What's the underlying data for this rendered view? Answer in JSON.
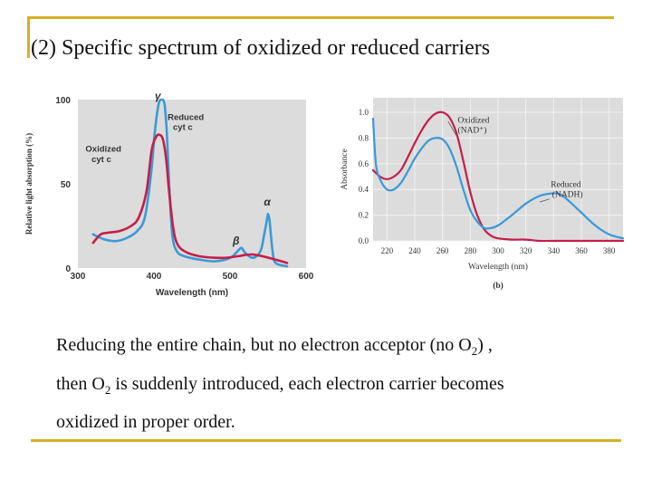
{
  "slide": {
    "title": "(2) Specific spectrum of oxidized or reduced carriers",
    "caption": {
      "line1_a": "Reducing the entire chain, but no electron acceptor (no O",
      "line1_sub": "2",
      "line1_b": ") ,",
      "line2_a": "then O",
      "line2_sub": "2",
      "line2_b": " is suddenly introduced, each electron carrier becomes",
      "line3": "oxidized in proper order."
    },
    "colors": {
      "accent_rule": "#d4b024",
      "reduced": "#3a9ad6",
      "oxidized": "#c41e4a",
      "plot_bg": "#dcdcdc"
    }
  },
  "chart_data": [
    {
      "type": "line",
      "ylabel": "Relative light absorption (%)",
      "xlabel": "Wavelength (nm)",
      "xlim": [
        300,
        600
      ],
      "ylim": [
        0,
        100
      ],
      "xticks": [
        "300",
        "400",
        "500",
        "600"
      ],
      "yticks": [
        "0",
        "50",
        "100"
      ],
      "grid": false,
      "series": [
        {
          "name": "Reduced cyt c",
          "color": "#3a9ad6",
          "x": [
            320,
            335,
            350,
            365,
            378,
            388,
            396,
            401,
            406,
            410,
            414,
            417,
            420,
            424,
            430,
            440,
            460,
            480,
            500,
            510,
            515,
            520,
            530,
            540,
            545,
            549,
            550,
            552,
            556,
            560,
            575
          ],
          "y": [
            20,
            17,
            16,
            18,
            22,
            30,
            55,
            80,
            97,
            100,
            97,
            80,
            50,
            20,
            10,
            7,
            5,
            4,
            6,
            10,
            12,
            9,
            6,
            10,
            20,
            30,
            32,
            28,
            10,
            3,
            1
          ]
        },
        {
          "name": "Oxidized cyt c",
          "color": "#c41e4a",
          "x": [
            320,
            330,
            340,
            355,
            370,
            380,
            390,
            397,
            403,
            408,
            412,
            416,
            420,
            425,
            430,
            440,
            460,
            490,
            510,
            530,
            560,
            575
          ],
          "y": [
            15,
            20,
            21,
            22,
            25,
            30,
            45,
            70,
            78,
            79,
            76,
            65,
            45,
            25,
            15,
            10,
            7,
            6,
            7,
            8,
            5,
            3
          ]
        }
      ],
      "annotations": [
        {
          "text": "γ",
          "x": 405,
          "y": 100
        },
        {
          "text": "Reduced",
          "x": 418,
          "y": 88
        },
        {
          "text": "cyt c",
          "x": 425,
          "y": 82
        },
        {
          "text": "Oxidized",
          "x": 310,
          "y": 69
        },
        {
          "text": "cyt c",
          "x": 318,
          "y": 63
        },
        {
          "text": "β",
          "x": 508,
          "y": 14
        },
        {
          "text": "α",
          "x": 549,
          "y": 37
        }
      ]
    },
    {
      "type": "line",
      "panel_label": "(b)",
      "ylabel": "Absorbance",
      "xlabel": "Wavelength (nm)",
      "xlim": [
        210,
        390
      ],
      "ylim": [
        0,
        1.0
      ],
      "xticks": [
        "220",
        "240",
        "260",
        "280",
        "300",
        "320",
        "340",
        "360",
        "380"
      ],
      "yticks": [
        "0.0",
        "0.2",
        "0.4",
        "0.6",
        "0.8",
        "1.0"
      ],
      "grid": true,
      "series": [
        {
          "name": "Oxidized (NAD+)",
          "color": "#c41e4a",
          "x": [
            210,
            215,
            220,
            225,
            230,
            235,
            240,
            245,
            250,
            255,
            260,
            265,
            270,
            275,
            280,
            285,
            290,
            295,
            300,
            310,
            320,
            330,
            340,
            360,
            390
          ],
          "y": [
            0.55,
            0.5,
            0.48,
            0.5,
            0.55,
            0.65,
            0.76,
            0.86,
            0.94,
            0.99,
            1.0,
            0.96,
            0.84,
            0.62,
            0.38,
            0.2,
            0.09,
            0.04,
            0.02,
            0.01,
            0.01,
            0.0,
            0.0,
            0.0,
            0.0
          ]
        },
        {
          "name": "Reduced (NADH)",
          "color": "#3a9ad6",
          "x": [
            210,
            212,
            215,
            220,
            225,
            230,
            235,
            240,
            245,
            250,
            255,
            260,
            265,
            270,
            275,
            280,
            285,
            290,
            295,
            300,
            310,
            320,
            330,
            340,
            345,
            350,
            360,
            370,
            380,
            390
          ],
          "y": [
            0.95,
            0.6,
            0.48,
            0.4,
            0.4,
            0.45,
            0.54,
            0.64,
            0.72,
            0.78,
            0.8,
            0.79,
            0.72,
            0.58,
            0.4,
            0.24,
            0.15,
            0.1,
            0.1,
            0.12,
            0.2,
            0.29,
            0.35,
            0.37,
            0.36,
            0.32,
            0.22,
            0.12,
            0.05,
            0.02
          ]
        }
      ],
      "annotations": [
        {
          "text": "Oxidized",
          "x": 271,
          "y": 0.92
        },
        {
          "text": "(NAD⁺)",
          "x": 271,
          "y": 0.84
        },
        {
          "text": "Reduced",
          "x": 338,
          "y": 0.42
        },
        {
          "text": "(NADH)",
          "x": 339,
          "y": 0.34
        }
      ]
    }
  ]
}
